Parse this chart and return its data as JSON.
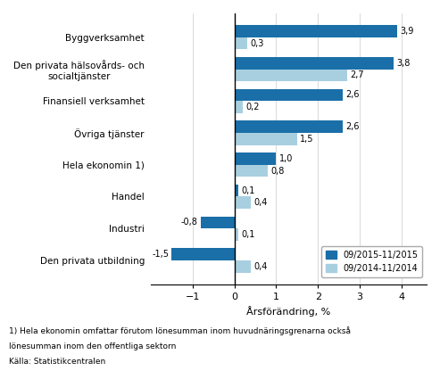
{
  "categories": [
    "Den privata utbildning",
    "Industri",
    "Handel",
    "Hela ekonomin 1)",
    "Övriga tjänster",
    "Finansiell verksamhet",
    "Den privata hälsovårds- och\nsocialtjänster",
    "Byggverksamhet"
  ],
  "values_2015": [
    -1.5,
    -0.8,
    0.1,
    1.0,
    2.6,
    2.6,
    3.8,
    3.9
  ],
  "values_2014": [
    0.4,
    0.1,
    0.4,
    0.8,
    1.5,
    0.2,
    2.7,
    0.3
  ],
  "color_2015": "#1a6fa8",
  "color_2014": "#a8cfe0",
  "xlabel": "Årsförändring, %",
  "legend_2015": "09/2015-11/2015",
  "legend_2014": "09/2014-11/2014",
  "xlim": [
    -2.0,
    4.6
  ],
  "xticks": [
    -1,
    0,
    1,
    2,
    3,
    4
  ],
  "footnote1": "1) Hela ekonomin omfattar förutom lönesumman inom huvudnäringsgrenarna också",
  "footnote2": "lönesumman inom den offentliga sektorn",
  "footnote3": "Källa: Statistikcentralen"
}
